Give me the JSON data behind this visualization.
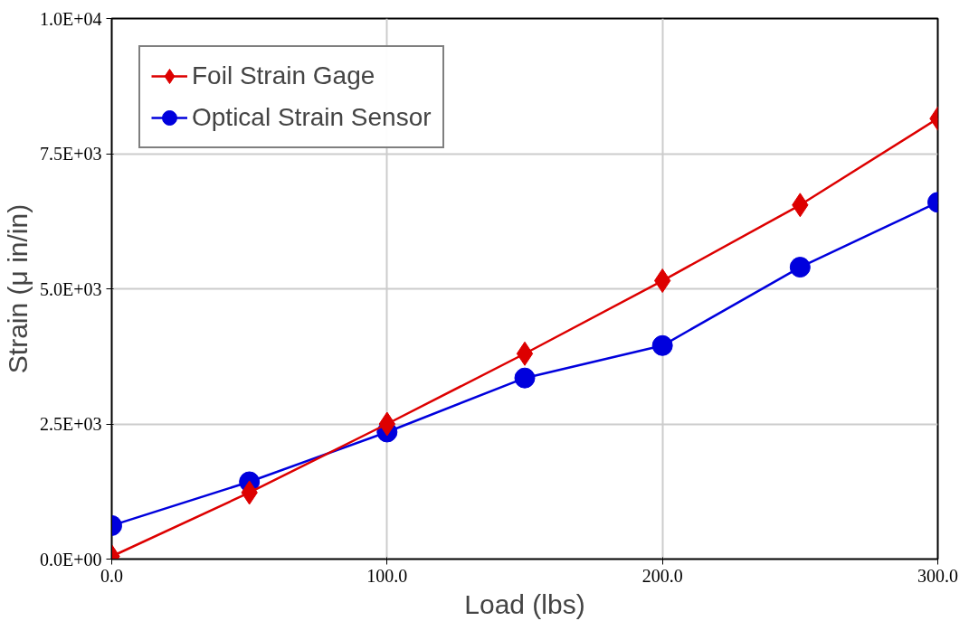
{
  "chart_data": {
    "type": "line",
    "xlabel": "Load (lbs)",
    "ylabel": "Strain (μ in/in)",
    "x": [
      0,
      50,
      100,
      150,
      200,
      250,
      300
    ],
    "series": [
      {
        "name": "Foil Strain Gage",
        "color": "#dd0000",
        "marker": "diamond",
        "values": [
          50,
          1230,
          2500,
          3800,
          5150,
          6550,
          8150
        ]
      },
      {
        "name": "Optical Strain Sensor",
        "color": "#0000dd",
        "marker": "circle",
        "values": [
          620,
          1430,
          2350,
          3350,
          3950,
          5400,
          6600
        ]
      }
    ],
    "xlim": [
      0,
      300
    ],
    "ylim": [
      0,
      10000
    ],
    "xticks": [
      {
        "value": 0,
        "label": "0.0"
      },
      {
        "value": 100,
        "label": "100.0"
      },
      {
        "value": 200,
        "label": "200.0"
      },
      {
        "value": 300,
        "label": "300.0"
      }
    ],
    "yticks": [
      {
        "value": 0,
        "label": "0.0E+00"
      },
      {
        "value": 2500,
        "label": "2.5E+03"
      },
      {
        "value": 5000,
        "label": "5.0E+03"
      },
      {
        "value": 7500,
        "label": "7.5E+03"
      },
      {
        "value": 10000,
        "label": "1.0E+04"
      }
    ],
    "grid": true,
    "legend": "top left",
    "line_style": "solid"
  }
}
